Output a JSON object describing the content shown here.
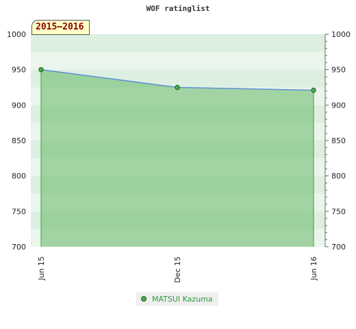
{
  "chart_data": {
    "type": "area",
    "title": "WOF ratinglist",
    "period_label": "2015–2016",
    "x_ticks": [
      "Jun 15",
      "Dec 15",
      "Jun 16"
    ],
    "y_ticks": [
      700,
      750,
      800,
      850,
      900,
      950,
      1000
    ],
    "ylim": [
      700,
      1000
    ],
    "series": [
      {
        "name": "MATSUI Kazuma",
        "color": "#4cae4c",
        "line_color": "#5b8fd6",
        "points": [
          {
            "x": "Jun 15",
            "y": 950
          },
          {
            "x": "Dec 15",
            "y": 925
          },
          {
            "x": "Jun 16",
            "y": 921
          }
        ]
      }
    ],
    "grid": true,
    "legend_position": "bottom"
  }
}
